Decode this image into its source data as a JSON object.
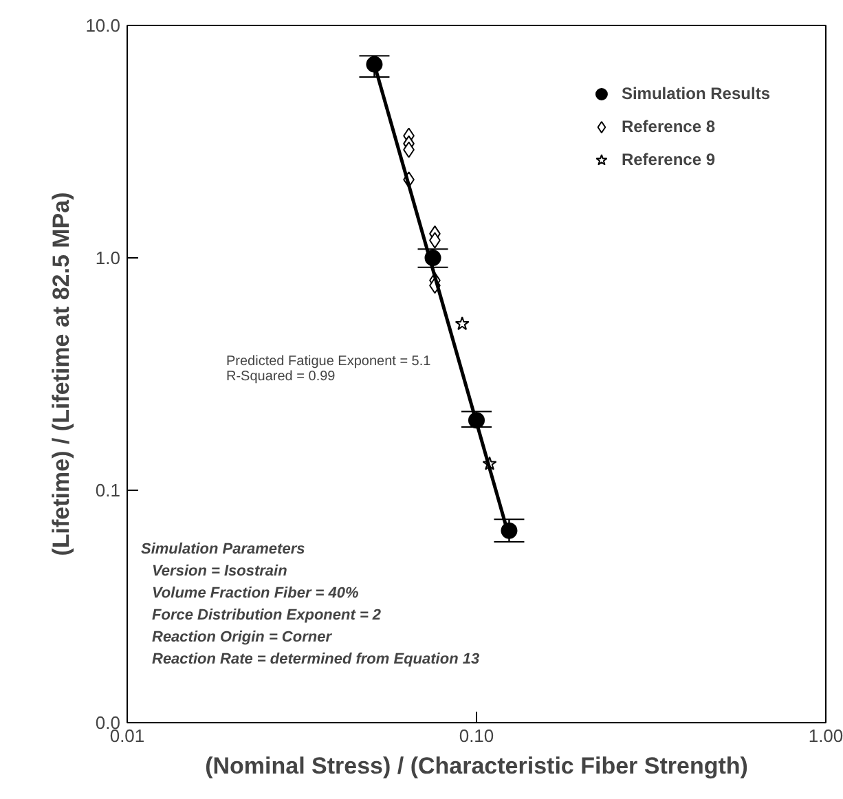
{
  "chart_data": {
    "type": "scatter",
    "xlabel": "(Nominal Stress) / (Characteristic Fiber Strength)",
    "ylabel": "(Lifetime) / (Lifetime at 82.5 MPa)",
    "log": "xy",
    "xlim": [
      0.01,
      1.0
    ],
    "ylim": [
      0.01,
      10.0
    ],
    "xticks": [
      {
        "value": 0.01,
        "label": "0.01"
      },
      {
        "value": 0.1,
        "label": "0.10"
      },
      {
        "value": 1.0,
        "label": "1.00"
      }
    ],
    "yticks": [
      {
        "value": 0.01,
        "label": "0.0"
      },
      {
        "value": 0.1,
        "label": "0.1"
      },
      {
        "value": 1.0,
        "label": "1.0"
      },
      {
        "value": 10.0,
        "label": "10.0"
      }
    ],
    "grid": false,
    "legend": "top right",
    "series": [
      {
        "name": "Simulation Results",
        "marker": "circle",
        "color": "#000000",
        "x": [
          0.051,
          0.075,
          0.1,
          0.124
        ],
        "values": [
          6.8,
          1.0,
          0.2,
          0.067
        ],
        "errors": [
          [
            6.0,
            7.4
          ],
          [
            0.91,
            1.09
          ],
          [
            0.187,
            0.218
          ],
          [
            0.06,
            0.075
          ]
        ]
      },
      {
        "name": "Reference 8",
        "marker": "diamond",
        "color": "#000000",
        "x": [
          0.064,
          0.064,
          0.064,
          0.064,
          0.076,
          0.076,
          0.076,
          0.076
        ],
        "values": [
          3.35,
          3.1,
          2.92,
          2.17,
          1.27,
          1.19,
          0.8,
          0.76
        ]
      },
      {
        "name": "Reference 9",
        "marker": "star",
        "color": "#000000",
        "x": [
          0.091,
          0.109
        ],
        "values": [
          0.52,
          0.13
        ]
      },
      {
        "type": "line",
        "marker": "none",
        "line_style": "solid",
        "color": "#000000",
        "x": [
          0.051,
          0.124
        ],
        "values": [
          6.8,
          0.063
        ]
      }
    ],
    "annotations": [
      "Predicted Fatigue Exponent = 5.1",
      "R-Squared = 0.99",
      "Simulation Parameters",
      "Version = Isostrain",
      "Volume Fraction Fiber = 40%",
      "Force Distribution Exponent = 2",
      "Reaction Origin = Corner",
      "Reaction Rate = determined from Equation 13"
    ]
  }
}
